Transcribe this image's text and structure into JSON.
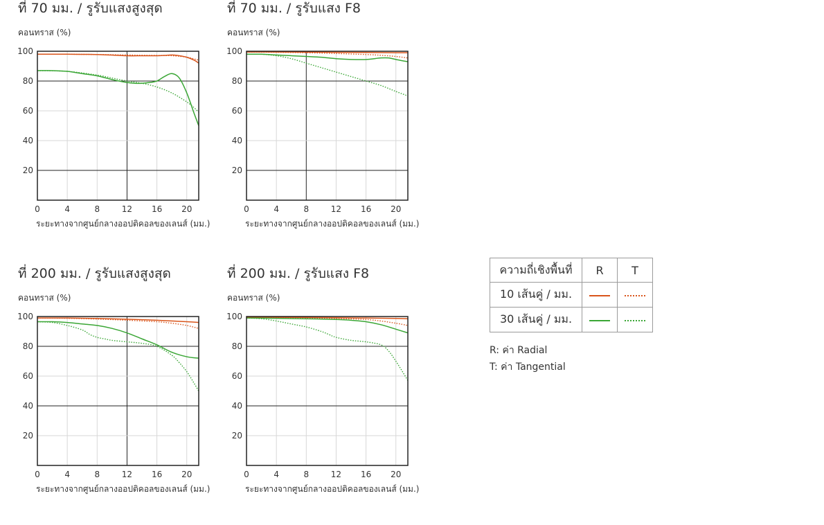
{
  "colors": {
    "r10": "#d9541a",
    "t10": "#d9541a",
    "r30": "#3aa635",
    "t30": "#3aa635",
    "thin_grid": "#d7d7d7",
    "major_grid": "#222222",
    "frame": "#222222"
  },
  "legend": {
    "header": [
      "ความถี่เชิงพื้นที่",
      "R",
      "T"
    ],
    "rows": [
      {
        "label": "10 เส้นคู่ / มม."
      },
      {
        "label": "30 เส้นคู่ / มม."
      }
    ],
    "notes": [
      "R: ค่า Radial",
      "T: ค่า Tangential"
    ]
  },
  "chart_data": [
    {
      "type": "line",
      "title": "ที่ 70 มม. / รูรับแสงสูงสุด",
      "ylabel": "คอนทราส (%)",
      "xlabel": "ระยะทางจากศูนย์กลางออปติคอลของเลนส์ (มม.)",
      "xlim": [
        0,
        21.6
      ],
      "ylim": [
        0,
        100
      ],
      "xticks": [
        0,
        4,
        8,
        12,
        16,
        20
      ],
      "yticks": [
        20,
        40,
        60,
        80,
        100
      ],
      "xtick_labels": [
        "0",
        "4",
        "8",
        "12",
        "16",
        "20"
      ],
      "ytick_labels": [
        "20",
        "40",
        "60",
        "80",
        "100"
      ],
      "major_x": [
        12
      ],
      "major_y": [
        20,
        80
      ],
      "series": [
        {
          "key": "r10",
          "x": [
            0,
            4,
            8,
            12,
            14,
            16,
            17,
            18,
            19,
            20,
            21,
            21.6
          ],
          "values": [
            98,
            98,
            97.8,
            97,
            97,
            97,
            97.2,
            97.5,
            97,
            96,
            94,
            92
          ]
        },
        {
          "key": "t10",
          "x": [
            0,
            4,
            8,
            12,
            14,
            16,
            18,
            20,
            21.6
          ],
          "values": [
            98,
            98,
            97.8,
            97.5,
            97.3,
            97.2,
            97,
            96,
            94
          ]
        },
        {
          "key": "r30",
          "x": [
            0,
            2,
            4,
            6,
            8,
            10,
            12,
            13,
            14,
            15,
            16,
            17,
            18,
            19,
            20,
            21,
            21.6
          ],
          "values": [
            87,
            87,
            86.5,
            85,
            83.5,
            81,
            79,
            78.5,
            78.5,
            79,
            80,
            83,
            85,
            82,
            72,
            58,
            50
          ]
        },
        {
          "key": "t30",
          "x": [
            0,
            4,
            8,
            10,
            12,
            14,
            16,
            18,
            20,
            21,
            21.6
          ],
          "values": [
            87,
            86.5,
            84,
            82,
            80,
            78.5,
            76,
            72,
            66,
            62,
            59
          ]
        }
      ]
    },
    {
      "type": "line",
      "title": "ที่ 70 มม. / รูรับแสง F8",
      "ylabel": "คอนทราส (%)",
      "xlabel": "ระยะทางจากศูนย์กลางออปติคอลของเลนส์ (มม.)",
      "xlim": [
        0,
        21.6
      ],
      "ylim": [
        0,
        100
      ],
      "xticks": [
        0,
        4,
        8,
        12,
        16,
        20
      ],
      "yticks": [
        20,
        40,
        60,
        80,
        100
      ],
      "xtick_labels": [
        "0",
        "4",
        "8",
        "12",
        "16",
        "20"
      ],
      "ytick_labels": [
        "20",
        "40",
        "60",
        "80",
        "100"
      ],
      "major_x": [
        8
      ],
      "major_y": [
        20,
        80
      ],
      "series": [
        {
          "key": "r10",
          "x": [
            0,
            4,
            8,
            12,
            16,
            20,
            21.6
          ],
          "values": [
            99.5,
            99.5,
            99.4,
            99.3,
            99.2,
            99,
            99
          ]
        },
        {
          "key": "t10",
          "x": [
            0,
            4,
            8,
            12,
            16,
            18,
            20,
            21.6
          ],
          "values": [
            99.5,
            99.3,
            99,
            98.5,
            97.8,
            97.3,
            96.5,
            95.5
          ]
        },
        {
          "key": "r30",
          "x": [
            0,
            2,
            4,
            6,
            8,
            10,
            12,
            14,
            16,
            18,
            19,
            20,
            21,
            21.6
          ],
          "values": [
            98,
            98,
            97.5,
            97,
            96.5,
            96,
            95,
            94.5,
            94.5,
            95.5,
            95.5,
            94.5,
            93.5,
            93
          ]
        },
        {
          "key": "t30",
          "x": [
            0,
            2,
            4,
            6,
            8,
            10,
            12,
            14,
            16,
            18,
            20,
            21.6
          ],
          "values": [
            98,
            98,
            97,
            95,
            92,
            89,
            86,
            83,
            80,
            77,
            73,
            70
          ]
        }
      ]
    },
    {
      "type": "line",
      "title": "ที่ 200 มม. / รูรับแสงสูงสุด",
      "ylabel": "คอนทราส (%)",
      "xlabel": "ระยะทางจากศูนย์กลางออปติคอลของเลนส์ (มม.)",
      "xlim": [
        0,
        21.6
      ],
      "ylim": [
        0,
        100
      ],
      "xticks": [
        0,
        4,
        8,
        12,
        16,
        20
      ],
      "yticks": [
        20,
        40,
        60,
        80,
        100
      ],
      "xtick_labels": [
        "0",
        "4",
        "8",
        "12",
        "16",
        "20"
      ],
      "ytick_labels": [
        "20",
        "40",
        "60",
        "80",
        "100"
      ],
      "major_x": [
        12
      ],
      "major_y": [
        40,
        80
      ],
      "series": [
        {
          "key": "r10",
          "x": [
            0,
            4,
            8,
            12,
            16,
            20,
            21.6
          ],
          "values": [
            99,
            99,
            98.7,
            98.2,
            97.5,
            96.5,
            96
          ]
        },
        {
          "key": "t10",
          "x": [
            0,
            4,
            8,
            12,
            16,
            18,
            20,
            21.6
          ],
          "values": [
            99,
            98.8,
            98.3,
            97.5,
            96.5,
            95.5,
            94,
            92
          ]
        },
        {
          "key": "r30",
          "x": [
            0,
            2,
            4,
            6,
            8,
            10,
            12,
            14,
            16,
            18,
            20,
            21.6
          ],
          "values": [
            96.5,
            96.5,
            96,
            95,
            94,
            92,
            89,
            85,
            81,
            76,
            73,
            72
          ]
        },
        {
          "key": "t30",
          "x": [
            0,
            2,
            4,
            6,
            7,
            8,
            9,
            10,
            12,
            14,
            16,
            18,
            19,
            20,
            21,
            21.6
          ],
          "values": [
            96.5,
            96,
            94,
            91,
            88,
            86,
            85,
            84,
            83,
            82,
            80,
            74,
            69,
            63,
            55,
            50
          ]
        }
      ]
    },
    {
      "type": "line",
      "title": "ที่ 200 มม. / รูรับแสง F8",
      "ylabel": "คอนทราส (%)",
      "xlabel": "ระยะทางจากศูนย์กลางออปติคอลของเลนส์ (มม.)",
      "xlim": [
        0,
        21.6
      ],
      "ylim": [
        0,
        100
      ],
      "xticks": [
        0,
        4,
        8,
        12,
        16,
        20
      ],
      "yticks": [
        20,
        40,
        60,
        80,
        100
      ],
      "xtick_labels": [
        "0",
        "4",
        "8",
        "12",
        "16",
        "20"
      ],
      "ytick_labels": [
        "20",
        "40",
        "60",
        "80",
        "100"
      ],
      "major_x": [],
      "major_y": [
        40,
        80
      ],
      "series": [
        {
          "key": "r10",
          "x": [
            0,
            4,
            8,
            12,
            16,
            20,
            21.6
          ],
          "values": [
            99.5,
            99.5,
            99.4,
            99.2,
            99,
            98.7,
            98.5
          ]
        },
        {
          "key": "t10",
          "x": [
            0,
            4,
            8,
            12,
            16,
            18,
            20,
            21.6
          ],
          "values": [
            99.5,
            99.3,
            99,
            98.7,
            98,
            97,
            95.5,
            94
          ]
        },
        {
          "key": "r30",
          "x": [
            0,
            4,
            8,
            12,
            14,
            16,
            18,
            20,
            21.6
          ],
          "values": [
            99,
            98.8,
            98.5,
            98,
            97.5,
            96.5,
            94.5,
            91.5,
            89
          ]
        },
        {
          "key": "t30",
          "x": [
            0,
            2,
            4,
            6,
            8,
            10,
            11,
            12,
            14,
            16,
            18,
            19,
            20,
            21,
            21.6
          ],
          "values": [
            99,
            98.5,
            97,
            95,
            93,
            90,
            88,
            86,
            84,
            83,
            81,
            77,
            70,
            62,
            57
          ]
        }
      ]
    }
  ]
}
